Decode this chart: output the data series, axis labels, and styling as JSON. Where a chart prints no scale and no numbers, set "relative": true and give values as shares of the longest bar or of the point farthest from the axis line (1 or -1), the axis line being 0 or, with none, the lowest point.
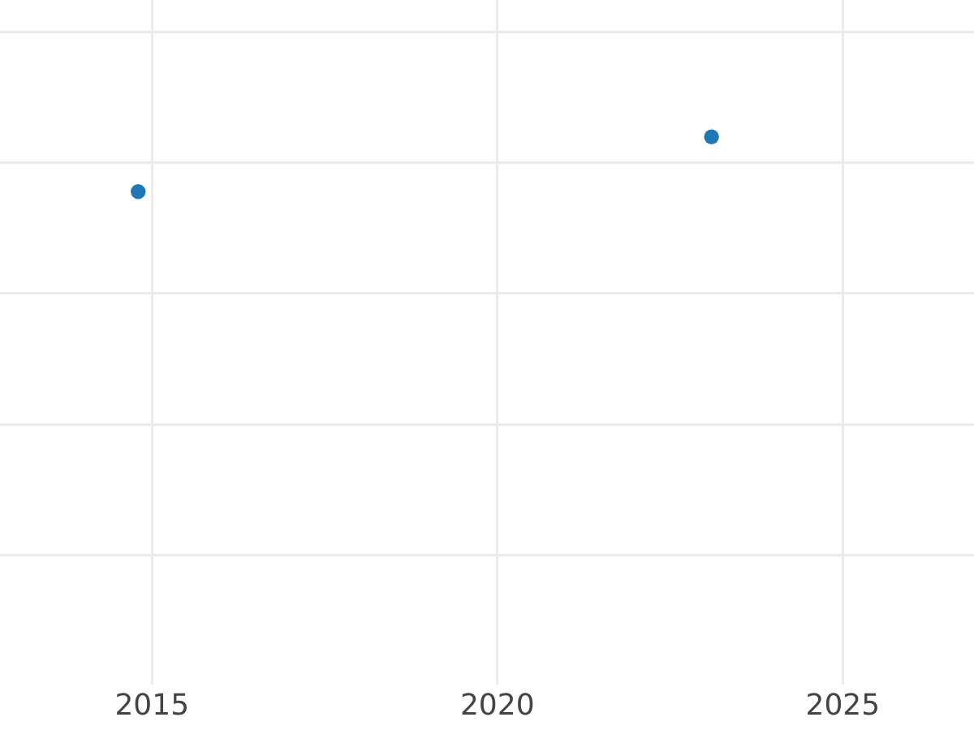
{
  "chart_data": {
    "type": "scatter",
    "x": [
      2014.8,
      2023.1
    ],
    "values": [
      0.9,
      1
    ],
    "relative": true,
    "color": "#1f77b4",
    "marker": "circle",
    "xlim": [
      2012.8,
      2026.9
    ],
    "xticks": [
      2015,
      2020,
      2025
    ],
    "grid": true,
    "tick_labels": "x"
  }
}
